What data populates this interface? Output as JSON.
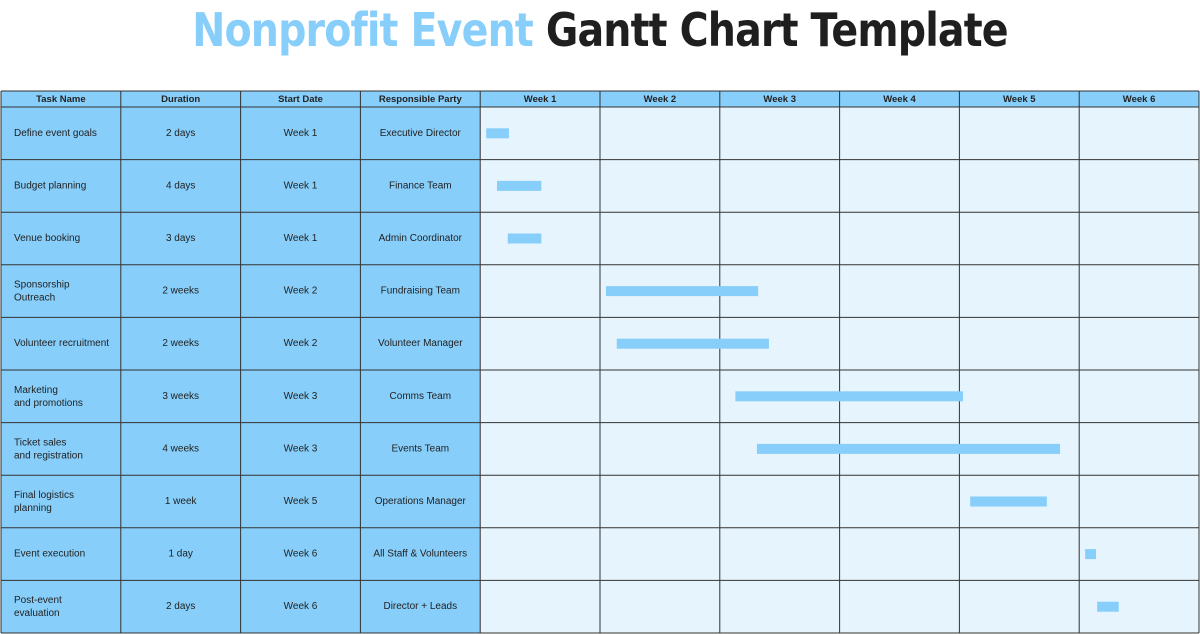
{
  "title": {
    "part1": "Nonprofit Event",
    "part2": "Gantt Chart Template"
  },
  "colors": {
    "header_bg": "#87cefa",
    "task_cell_bg": "#87cefa",
    "timeline_bg": "#e6f4fd",
    "bar": "#87cefa",
    "grid": "#333333",
    "title_accent": "#87cefa"
  },
  "chart_data": {
    "type": "gantt",
    "columns": [
      "Task Name",
      "Duration",
      "Start Date",
      "Responsible Party"
    ],
    "weeks": [
      "Week 1",
      "Week 2",
      "Week 3",
      "Week 4",
      "Week 5",
      "Week 6"
    ],
    "tasks": [
      {
        "name": "Define event goals",
        "duration": "2 days",
        "start": "Week 1",
        "owner": "Executive Director",
        "bar_start_week": 1.05,
        "bar_end_week": 1.24
      },
      {
        "name": "Budget planning",
        "duration": "4 days",
        "start": "Week 1",
        "owner": "Finance Team",
        "bar_start_week": 1.14,
        "bar_end_week": 1.51
      },
      {
        "name": "Venue booking",
        "duration": "3 days",
        "start": "Week 1",
        "owner": "Admin Coordinator",
        "bar_start_week": 1.23,
        "bar_end_week": 1.51
      },
      {
        "name": "Sponsorship\nOutreach",
        "duration": "2 weeks",
        "start": "Week 2",
        "owner": "Fundraising Team",
        "bar_start_week": 2.05,
        "bar_end_week": 3.32
      },
      {
        "name": "Volunteer recruitment",
        "duration": "2 weeks",
        "start": "Week 2",
        "owner": "Volunteer Manager",
        "bar_start_week": 2.14,
        "bar_end_week": 3.41
      },
      {
        "name": "Marketing\nand promotions",
        "duration": "3 weeks",
        "start": "Week 3",
        "owner": "Comms Team",
        "bar_start_week": 3.13,
        "bar_end_week": 5.03
      },
      {
        "name": "Ticket sales\nand registration",
        "duration": "4 weeks",
        "start": "Week 3",
        "owner": "Events Team",
        "bar_start_week": 3.31,
        "bar_end_week": 5.84
      },
      {
        "name": "Final logistics\nplanning",
        "duration": "1 week",
        "start": "Week 5",
        "owner": "Operations Manager",
        "bar_start_week": 5.09,
        "bar_end_week": 5.73
      },
      {
        "name": "Event execution",
        "duration": "1 day",
        "start": "Week 6",
        "owner": "All Staff & Volunteers",
        "bar_start_week": 6.05,
        "bar_end_week": 6.14
      },
      {
        "name": "Post-event\nevaluation",
        "duration": "2 days",
        "start": "Week 6",
        "owner": "Director + Leads",
        "bar_start_week": 6.15,
        "bar_end_week": 6.33
      }
    ]
  }
}
